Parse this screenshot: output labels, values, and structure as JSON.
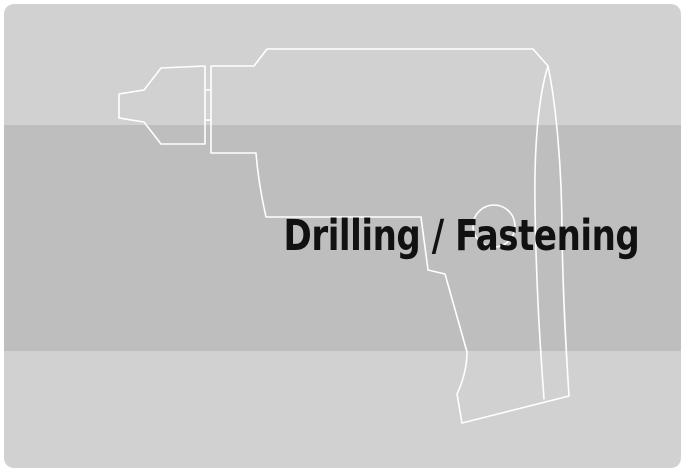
{
  "card": {
    "title": "Drilling / Fastening",
    "icon": "power-drill-outline-icon",
    "colors": {
      "card_background": "#d1d1d1",
      "band_background": "#bdbebd",
      "outline": "#ffffff",
      "text": "#111111"
    }
  }
}
